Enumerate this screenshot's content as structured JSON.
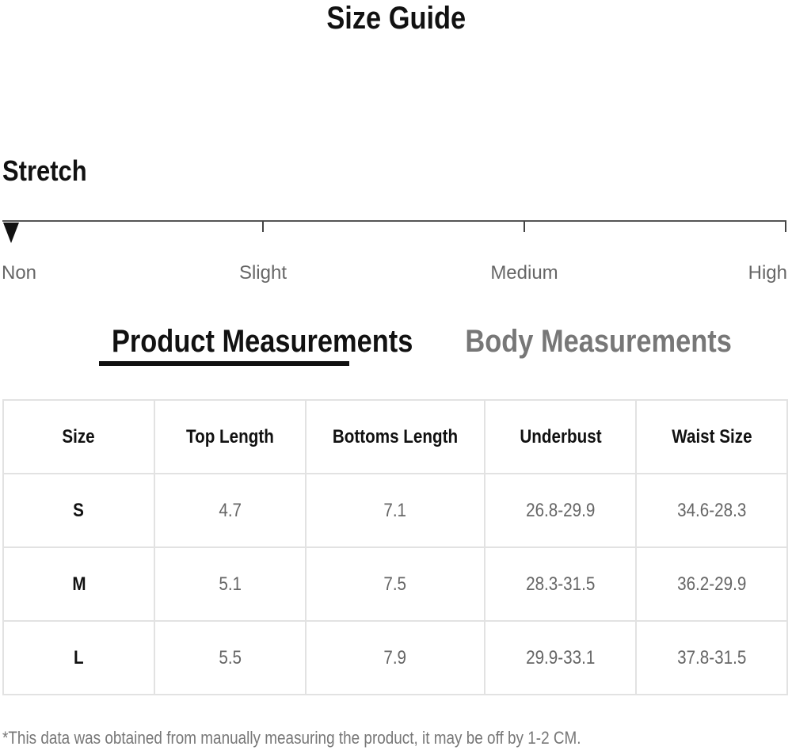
{
  "title": "Size Guide",
  "stretch": {
    "label": "Stretch",
    "levels": [
      "Non",
      "Slight",
      "Medium",
      "High"
    ],
    "selected": "Non"
  },
  "tabs": [
    {
      "label": "Product Measurements",
      "active": true
    },
    {
      "label": "Body Measurements",
      "active": false
    }
  ],
  "table": {
    "headers": [
      "Size",
      "Top Length",
      "Bottoms Length",
      "Underbust",
      "Waist Size"
    ],
    "rows": [
      [
        "S",
        "4.7",
        "7.1",
        "26.8-29.9",
        "34.6-28.3"
      ],
      [
        "M",
        "5.1",
        "7.5",
        "28.3-31.5",
        "36.2-29.9"
      ],
      [
        "L",
        "5.5",
        "7.9",
        "29.9-33.1",
        "37.8-31.5"
      ]
    ]
  },
  "footnote": "*This data was obtained from manually measuring the product, it may be off by 1-2 CM."
}
